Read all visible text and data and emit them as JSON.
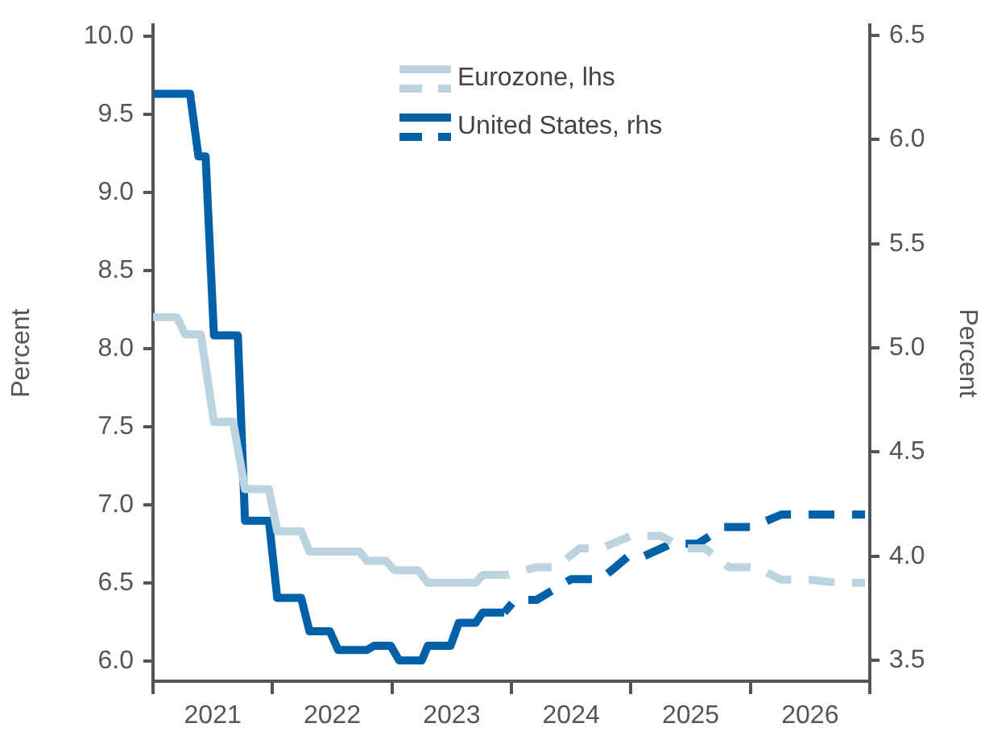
{
  "chart_data": {
    "type": "line",
    "ylabel": "Percent",
    "y2label": "Percent",
    "legend": "top",
    "xlim": [
      2021,
      2027
    ],
    "xticks": [
      {
        "value": 2021,
        "label": null
      },
      {
        "value": 2021.5,
        "label": "2021"
      },
      {
        "value": 2022,
        "label": null
      },
      {
        "value": 2022.5,
        "label": "2022"
      },
      {
        "value": 2023,
        "label": null
      },
      {
        "value": 2023.5,
        "label": "2023"
      },
      {
        "value": 2024,
        "label": null
      },
      {
        "value": 2024.5,
        "label": "2024"
      },
      {
        "value": 2025,
        "label": null
      },
      {
        "value": 2025.5,
        "label": "2025"
      },
      {
        "value": 2026,
        "label": null
      },
      {
        "value": 2026.5,
        "label": "2026"
      },
      {
        "value": 2027,
        "label": null
      }
    ],
    "ylim": [
      5.87,
      10.07
    ],
    "yticks": [
      {
        "value": 6,
        "label": "6.0"
      },
      6.5,
      {
        "value": 7,
        "label": "7.0"
      },
      7.5,
      {
        "value": 8,
        "label": "8.0"
      },
      8.5,
      {
        "value": 9,
        "label": "9.0"
      },
      9.5,
      {
        "value": 10,
        "label": "10.0"
      }
    ],
    "y2lim": [
      3.4,
      6.55
    ],
    "y2ticks": [
      3.5,
      {
        "value": 4,
        "label": "4.0"
      },
      4.5,
      {
        "value": 5,
        "label": "5.0"
      },
      5.5,
      {
        "value": 6,
        "label": "6.0"
      },
      6.5
    ],
    "series": [
      {
        "name": "Eurozone, lhs",
        "color": "#bcd4e0",
        "line_style": "solid",
        "x": [
          2021.0,
          2021.2,
          2021.27,
          2021.4,
          2021.51,
          2021.67,
          2021.77,
          2021.97,
          2022.04,
          2022.24,
          2022.31,
          2022.73,
          2022.79,
          2022.95,
          2023.02,
          2023.22,
          2023.3,
          2023.7,
          2023.76,
          2023.96
        ],
        "values": [
          8.2,
          8.2,
          8.09,
          8.09,
          7.53,
          7.53,
          7.1,
          7.1,
          6.83,
          6.83,
          6.7,
          6.7,
          6.64,
          6.64,
          6.58,
          6.58,
          6.5,
          6.5,
          6.55,
          6.55
        ]
      },
      {
        "color": "#bcd4e0",
        "line_style": "dashed",
        "x": [
          2023.96,
          2024.21,
          2024.37,
          2024.57,
          2024.75,
          2025.0,
          2025.25,
          2025.45,
          2025.62,
          2025.82,
          2026.05,
          2026.26,
          2026.49,
          2026.73,
          2026.96
        ],
        "values": [
          6.55,
          6.6,
          6.6,
          6.72,
          6.72,
          6.8,
          6.8,
          6.72,
          6.72,
          6.6,
          6.6,
          6.52,
          6.52,
          6.5,
          6.5
        ]
      },
      {
        "name": "United States, rhs",
        "color": "#0061a8",
        "line_style": "solid",
        "axis": "y2",
        "x": [
          2021.0,
          2021.31,
          2021.38,
          2021.44,
          2021.51,
          2021.71,
          2021.77,
          2021.97,
          2022.04,
          2022.24,
          2022.31,
          2022.48,
          2022.55,
          2022.79,
          2022.85,
          2022.99,
          2023.06,
          2023.25,
          2023.3,
          2023.49,
          2023.56,
          2023.7,
          2023.76,
          2023.94
        ],
        "values": [
          6.22,
          6.22,
          5.92,
          5.92,
          5.06,
          5.06,
          4.17,
          4.17,
          3.8,
          3.8,
          3.64,
          3.64,
          3.55,
          3.55,
          3.57,
          3.57,
          3.5,
          3.5,
          3.57,
          3.57,
          3.68,
          3.68,
          3.73,
          3.73
        ]
      },
      {
        "color": "#0061a8",
        "line_style": "dashed",
        "axis": "y2",
        "x": [
          2023.94,
          2024.03,
          2024.21,
          2024.5,
          2024.75,
          2024.98,
          2025.11,
          2025.34,
          2025.56,
          2025.78,
          2026.01,
          2026.26,
          2026.96
        ],
        "values": [
          3.73,
          3.79,
          3.79,
          3.89,
          3.89,
          4.0,
          4.0,
          4.06,
          4.06,
          4.14,
          4.14,
          4.2,
          4.2
        ]
      }
    ]
  }
}
